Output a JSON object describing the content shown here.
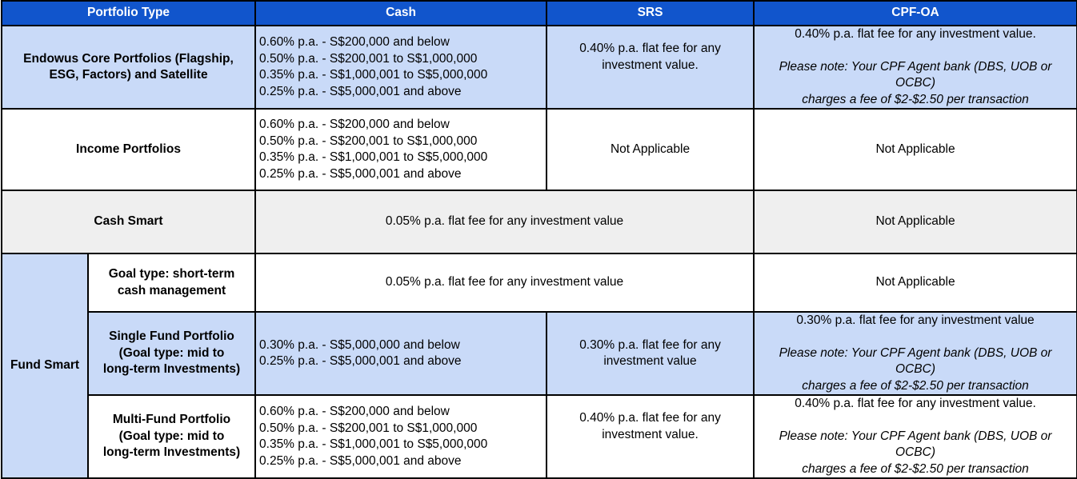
{
  "header": {
    "portfolio_type": "Portfolio Type",
    "cash": "Cash",
    "srs": "SRS",
    "cpf_oa": "CPF-OA"
  },
  "tiers_standard": [
    "0.60% p.a. - S$200,000 and below",
    "0.50% p.a. - S$200,001 to S$1,000,000",
    "0.35% p.a. - S$1,000,001 to S$5,000,000",
    "0.25% p.a. - S$5,000,001 and above"
  ],
  "tiers_single": [
    "0.30% p.a. - S$5,000,000 and below",
    "0.25% p.a. - S$5,000,001 and above"
  ],
  "rows": {
    "core": {
      "label_1": "Endowus Core Portfolios (Flagship,",
      "label_2": "ESG, Factors) and Satellite",
      "srs_1": "0.40% p.a. flat fee for any",
      "srs_2": "investment value.",
      "cpf_main": "0.40% p.a. flat fee for any investment value.",
      "cpf_note_1": "Please note: Your CPF Agent bank (DBS, UOB or OCBC)",
      "cpf_note_2": "charges a fee of $2-$2.50 per transaction"
    },
    "income": {
      "label": "Income Portfolios",
      "srs": "Not Applicable",
      "cpf": "Not Applicable"
    },
    "cash_smart": {
      "label": "Cash Smart",
      "cash_srs": "0.05% p.a. flat fee for any investment value",
      "cpf": "Not Applicable"
    },
    "fund_smart": {
      "label": "Fund Smart",
      "short_term": {
        "label_1": "Goal type: short-term",
        "label_2": "cash management",
        "cash_srs": "0.05% p.a. flat fee for any investment value",
        "cpf": "Not Applicable"
      },
      "single_fund": {
        "label_1": "Single Fund Portfolio",
        "label_2": "(Goal type: mid to",
        "label_3": "long-term Investments)",
        "srs_1": "0.30% p.a. flat fee for any",
        "srs_2": "investment value",
        "cpf_main": "0.30% p.a. flat fee for any investment value",
        "cpf_note_1": "Please note: Your CPF Agent bank (DBS, UOB or OCBC)",
        "cpf_note_2": "charges a fee of $2-$2.50 per transaction"
      },
      "multi_fund": {
        "label_1": "Multi-Fund Portfolio",
        "label_2": "(Goal type: mid to",
        "label_3": "long-term Investments)",
        "srs_1": "0.40% p.a. flat fee for any",
        "srs_2": "investment value.",
        "cpf_main": "0.40% p.a. flat fee for any investment value.",
        "cpf_note_1": "Please note: Your CPF Agent bank (DBS, UOB or OCBC)",
        "cpf_note_2": "charges a fee of $2-$2.50 per transaction"
      }
    }
  },
  "colors": {
    "header_bg": "#1155cc",
    "header_text": "#ffffff",
    "row_blue": "#c9daf8",
    "row_grey": "#efefef",
    "border": "#000000"
  }
}
